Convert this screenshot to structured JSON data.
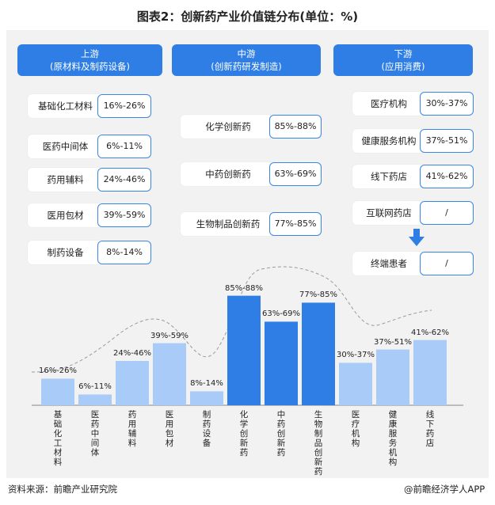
{
  "title": "图表2：创新药产业价值链分布(单位：%)",
  "columns": [
    {
      "name": "上游",
      "sub": "(原材料及制药设备)"
    },
    {
      "name": "中游",
      "sub": "(创新药研发制造)"
    },
    {
      "name": "下游",
      "sub": "(应用消费)"
    }
  ],
  "upstream": [
    {
      "label": "基础化工材料",
      "value": "16%-26%"
    },
    {
      "label": "医药中间体",
      "value": "6%-11%"
    },
    {
      "label": "药用辅料",
      "value": "24%-46%"
    },
    {
      "label": "医用包材",
      "value": "39%-59%"
    },
    {
      "label": "制药设备",
      "value": "8%-14%"
    }
  ],
  "midstream": [
    {
      "label": "化学创新药",
      "value": "85%-88%"
    },
    {
      "label": "中药创新药",
      "value": "63%-69%"
    },
    {
      "label": "生物制品创新药",
      "value": "77%-85%"
    }
  ],
  "downstream": [
    {
      "label": "医疗机构",
      "value": "30%-37%"
    },
    {
      "label": "健康服务机构",
      "value": "37%-51%"
    },
    {
      "label": "线下药店",
      "value": "41%-62%"
    },
    {
      "label": "互联网药店",
      "value": "/"
    },
    {
      "label": "终端患者",
      "value": "/"
    }
  ],
  "chart_data": {
    "type": "bar",
    "categories": [
      "基础化工材料",
      "医药中间体",
      "药用辅料",
      "医用包材",
      "制药设备",
      "化学创新药",
      "中药创新药",
      "生物制品创新药",
      "医疗机构",
      "健康服务机构",
      "线下药店"
    ],
    "value_labels": [
      "16%-26%",
      "6%-11%",
      "24%-46%",
      "39%-59%",
      "8%-14%",
      "85%-88%",
      "63%-69%",
      "77%-85%",
      "30%-37%",
      "37%-51%",
      "41%-62%"
    ],
    "values": [
      21,
      8.5,
      35,
      49,
      11,
      86.5,
      66,
      81,
      33.5,
      44,
      51.5
    ],
    "segment": [
      "upstream",
      "upstream",
      "upstream",
      "upstream",
      "upstream",
      "midstream",
      "midstream",
      "midstream",
      "downstream",
      "downstream",
      "downstream"
    ],
    "colors": {
      "upstream": "#a9cbf7",
      "midstream": "#2f7ee6",
      "downstream": "#a9cbf7",
      "accent": "#2f7ee6"
    },
    "ylim": [
      0,
      100
    ],
    "xlabel": "",
    "ylabel": ""
  },
  "footer": {
    "source": "资料来源：前瞻产业研究院",
    "brand": "@前瞻经济学人APP"
  }
}
